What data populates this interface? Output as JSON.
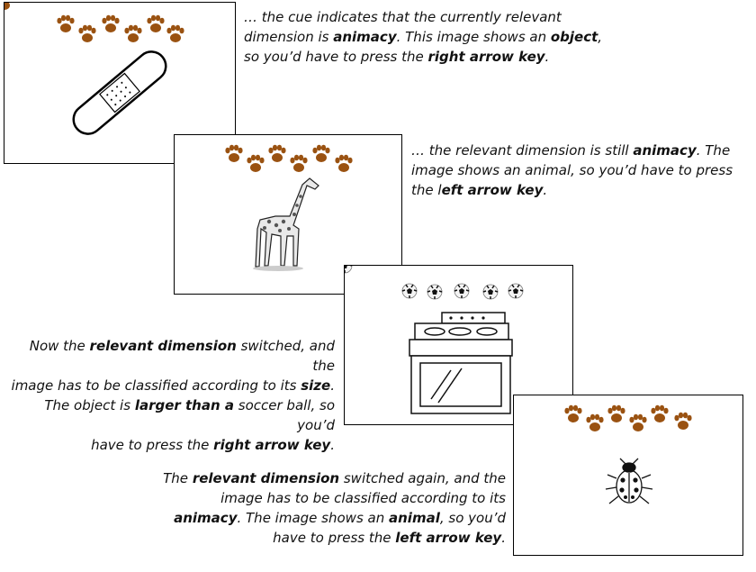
{
  "cards": [
    {
      "cue": "paws",
      "image": "bandage"
    },
    {
      "cue": "paws",
      "image": "giraffe"
    },
    {
      "cue": "soccer-balls",
      "image": "oven"
    },
    {
      "cue": "paws",
      "image": "ladybug"
    }
  ],
  "captions": [
    {
      "lines": [
        [
          {
            "t": "… the cue indicates that the currently relevant"
          }
        ],
        [
          {
            "t": "dimension is "
          },
          {
            "t": "animacy",
            "b": true
          },
          {
            "t": ". This image shows an "
          },
          {
            "t": "object",
            "b": true
          },
          {
            "t": ","
          }
        ],
        [
          {
            "t": "so you’d have to press the "
          },
          {
            "t": "right arrow key",
            "b": true
          },
          {
            "t": "."
          }
        ]
      ]
    },
    {
      "lines": [
        [
          {
            "t": "… the relevant dimension is still "
          },
          {
            "t": "animacy",
            "b": true
          },
          {
            "t": ". The"
          }
        ],
        [
          {
            "t": "image shows an animal, so you’d have to press"
          }
        ],
        [
          {
            "t": "the l"
          },
          {
            "t": "eft arrow key",
            "b": true
          },
          {
            "t": "."
          }
        ]
      ]
    },
    {
      "lines": [
        [
          {
            "t": "Now the "
          },
          {
            "t": "relevant dimension",
            "b": true
          },
          {
            "t": " switched, and the"
          }
        ],
        [
          {
            "t": "image has to be classified according to its "
          },
          {
            "t": "size",
            "b": true
          },
          {
            "t": "."
          }
        ],
        [
          {
            "t": "The object is "
          },
          {
            "t": "larger than a",
            "b": true
          },
          {
            "t": " soccer ball, so you’d"
          }
        ],
        [
          {
            "t": "have to press the "
          },
          {
            "t": "right arrow key",
            "b": true
          },
          {
            "t": "."
          }
        ]
      ]
    },
    {
      "lines": [
        [
          {
            "t": "The "
          },
          {
            "t": "relevant dimension",
            "b": true
          },
          {
            "t": " switched again, and the"
          }
        ],
        [
          {
            "t": "image has to be classified according to its"
          }
        ],
        [
          {
            "t": "animacy",
            "b": true
          },
          {
            "t": ". The image shows an "
          },
          {
            "t": "animal",
            "b": true
          },
          {
            "t": ", so you’d"
          }
        ],
        [
          {
            "t": "have to press the "
          },
          {
            "t": "left arrow key",
            "b": true
          },
          {
            "t": "."
          }
        ]
      ]
    }
  ]
}
